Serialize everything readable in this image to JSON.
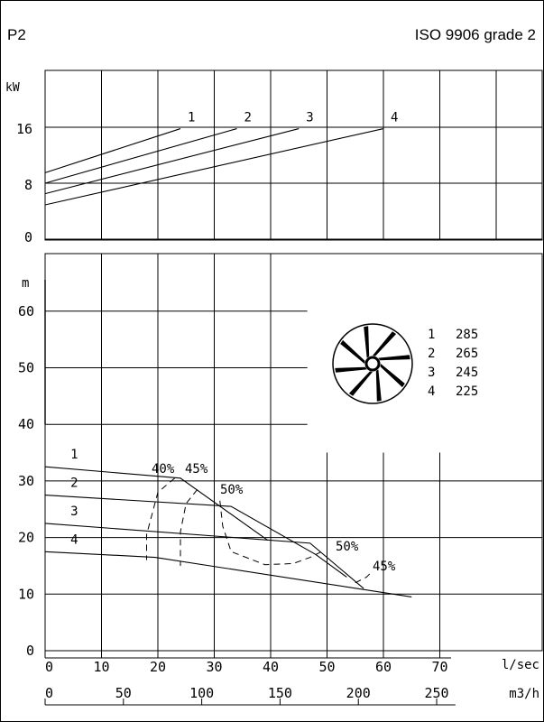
{
  "header": {
    "left_label": "P2",
    "right_label": "ISO 9906 grade 2"
  },
  "chart_data": [
    {
      "type": "line",
      "panel": "power",
      "ylabel": "kW",
      "y_ticks": [
        "16",
        "8",
        "0"
      ],
      "ylim": [
        0,
        20.5
      ],
      "xlim": [
        0,
        72
      ],
      "x_unit": "l/sec",
      "series": [
        {
          "name": "1",
          "x": [
            0,
            24
          ],
          "y": [
            9.5,
            15.8
          ]
        },
        {
          "name": "2",
          "x": [
            0,
            34
          ],
          "y": [
            8.0,
            15.8
          ]
        },
        {
          "name": "3",
          "x": [
            0,
            45
          ],
          "y": [
            6.5,
            15.8
          ]
        },
        {
          "name": "4",
          "x": [
            0,
            60
          ],
          "y": [
            4.9,
            15.8
          ]
        }
      ]
    },
    {
      "type": "line",
      "panel": "head",
      "ylabel": "m",
      "y_ticks": [
        "60",
        "50",
        "40",
        "30",
        "20",
        "10",
        "0"
      ],
      "ylim": [
        0,
        69
      ],
      "xlim": [
        0,
        72
      ],
      "xlabel_primary": "l/sec",
      "x_ticks_primary": [
        "0",
        "10",
        "20",
        "30",
        "40",
        "50",
        "60",
        "70"
      ],
      "xlabel_secondary": "m3/h",
      "x_ticks_secondary": [
        "0",
        "50",
        "100",
        "150",
        "200",
        "250"
      ],
      "series": [
        {
          "name": "1",
          "x": [
            0,
            24,
            39.5
          ],
          "y": [
            32.5,
            30.5,
            19.5
          ]
        },
        {
          "name": "2",
          "x": [
            0,
            33,
            48,
            53.5
          ],
          "y": [
            27.5,
            25.5,
            17,
            13
          ]
        },
        {
          "name": "3",
          "x": [
            0,
            47,
            56.5
          ],
          "y": [
            22.5,
            19,
            11
          ]
        },
        {
          "name": "4",
          "x": [
            0,
            19.5,
            65
          ],
          "y": [
            17.5,
            16.5,
            9.5
          ]
        }
      ],
      "efficiency_curves": [
        {
          "label": "40%",
          "x": [
            23,
            20,
            18,
            18
          ],
          "y": [
            30.5,
            28,
            20.5,
            16
          ]
        },
        {
          "label": "45%",
          "x": [
            27,
            25,
            24,
            24
          ],
          "y": [
            28.5,
            26,
            21,
            15
          ]
        },
        {
          "label": "50%",
          "x": [
            31,
            31.5,
            33,
            39,
            44,
            47,
            49
          ],
          "y": [
            26.5,
            22,
            17.5,
            15.2,
            15.4,
            16.5,
            17.5
          ]
        },
        {
          "label": "45%",
          "x": [
            55,
            57,
            58
          ],
          "y": [
            12,
            13,
            14
          ]
        }
      ],
      "efficiency_labels": [
        "40%",
        "45%",
        "50%",
        "50%",
        "45%"
      ],
      "impeller_legend": [
        {
          "id": "1",
          "value": "285"
        },
        {
          "id": "2",
          "value": "265"
        },
        {
          "id": "3",
          "value": "245"
        },
        {
          "id": "4",
          "value": "225"
        }
      ]
    }
  ]
}
